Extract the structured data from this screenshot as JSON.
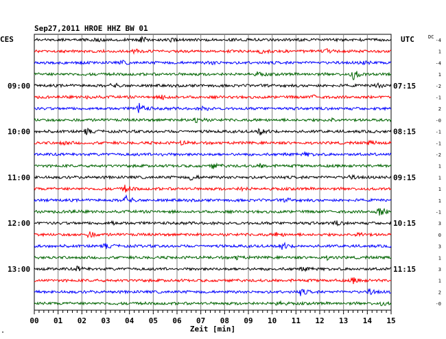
{
  "header": {
    "title": "Sep27,2011  HROE HHZ BW 01",
    "left_tz": "CES",
    "right_tz": "UTC",
    "dc_label": "DC"
  },
  "footer": {
    "xlabel": "Zeit [min]",
    "corner_mark": "\""
  },
  "chart_data": {
    "type": "line",
    "title": "Sep27,2011  HROE HHZ BW 01",
    "xlabel": "Zeit [min]",
    "xlim": [
      0,
      15
    ],
    "x_ticks": [
      "00",
      "01",
      "02",
      "03",
      "04",
      "05",
      "06",
      "07",
      "08",
      "09",
      "10",
      "11",
      "12",
      "13",
      "14",
      "15"
    ],
    "grid": true,
    "trace_colors": [
      "#000000",
      "#ff0000",
      "#0000ff",
      "#006400"
    ],
    "left_hour_labels": [
      {
        "row": 4,
        "text": "09:00"
      },
      {
        "row": 8,
        "text": "10:00"
      },
      {
        "row": 12,
        "text": "11:00"
      },
      {
        "row": 16,
        "text": "12:00"
      },
      {
        "row": 20,
        "text": "13:00"
      }
    ],
    "right_hour_labels": [
      {
        "row": 4,
        "text": "07:15"
      },
      {
        "row": 8,
        "text": "08:15"
      },
      {
        "row": 12,
        "text": "09:15"
      },
      {
        "row": 16,
        "text": "10:15"
      },
      {
        "row": 20,
        "text": "11:15"
      }
    ],
    "dc_offsets": [
      "-4",
      "1",
      "-4",
      "1",
      "-2",
      "-1",
      "2",
      "-0",
      "-1",
      "-1",
      "-2",
      "1",
      "1",
      "1",
      "1",
      "-1",
      "3",
      "0",
      "3",
      "1",
      "3",
      "1",
      "2",
      "-0"
    ],
    "rows": [
      {
        "events": [
          {
            "t": 2.5,
            "a": 0.5
          },
          {
            "t": 4.5,
            "a": 0.55
          },
          {
            "t": 5.8,
            "a": 0.35
          }
        ]
      },
      {
        "events": [
          {
            "t": 4.2,
            "a": 0.35
          },
          {
            "t": 9.5,
            "a": 0.3
          },
          {
            "t": 12.3,
            "a": 0.3
          }
        ]
      },
      {
        "events": [
          {
            "t": 3.7,
            "a": 0.3
          },
          {
            "t": 7.4,
            "a": 0.3
          },
          {
            "t": 13.8,
            "a": 0.3
          }
        ]
      },
      {
        "events": [
          {
            "t": 9.4,
            "a": 0.4
          },
          {
            "t": 13.4,
            "a": 1.0
          }
        ]
      },
      {
        "events": [
          {
            "t": 3.3,
            "a": 0.4
          },
          {
            "t": 14.3,
            "a": 0.6
          }
        ]
      },
      {
        "events": [
          {
            "t": 2.3,
            "a": 0.35
          },
          {
            "t": 5.4,
            "a": 0.55
          },
          {
            "t": 11.7,
            "a": 0.35
          }
        ]
      },
      {
        "events": [
          {
            "t": 4.4,
            "a": 1.1
          },
          {
            "t": 7.1,
            "a": 0.3
          }
        ]
      },
      {
        "events": [
          {
            "t": 6.8,
            "a": 0.6
          },
          {
            "t": 12.5,
            "a": 0.3
          }
        ]
      },
      {
        "events": [
          {
            "t": 2.2,
            "a": 0.5
          },
          {
            "t": 9.5,
            "a": 0.7
          }
        ]
      },
      {
        "events": [
          {
            "t": 1.2,
            "a": 0.3
          },
          {
            "t": 6.2,
            "a": 0.3
          },
          {
            "t": 14.1,
            "a": 0.3
          }
        ]
      },
      {
        "events": [
          {
            "t": 5.2,
            "a": 0.3
          },
          {
            "t": 11.4,
            "a": 0.3
          }
        ]
      },
      {
        "events": [
          {
            "t": 7.5,
            "a": 0.45
          },
          {
            "t": 9.5,
            "a": 0.35
          }
        ]
      },
      {
        "events": [
          {
            "t": 6.6,
            "a": 0.5
          },
          {
            "t": 13.3,
            "a": 0.3
          }
        ]
      },
      {
        "events": [
          {
            "t": 3.8,
            "a": 0.7
          },
          {
            "t": 8.7,
            "a": 0.3
          }
        ]
      },
      {
        "events": [
          {
            "t": 3.8,
            "a": 1.0
          },
          {
            "t": 10.6,
            "a": 0.3
          }
        ]
      },
      {
        "events": [
          {
            "t": 1.5,
            "a": 0.3
          },
          {
            "t": 14.5,
            "a": 1.0
          }
        ]
      },
      {
        "events": [
          {
            "t": 3.2,
            "a": 0.3
          },
          {
            "t": 12.7,
            "a": 0.35
          }
        ]
      },
      {
        "events": [
          {
            "t": 2.3,
            "a": 0.55
          },
          {
            "t": 10.2,
            "a": 0.45
          },
          {
            "t": 13.6,
            "a": 0.5
          }
        ]
      },
      {
        "events": [
          {
            "t": 3.0,
            "a": 0.45
          },
          {
            "t": 10.4,
            "a": 0.8
          }
        ]
      },
      {
        "events": [
          {
            "t": 8.5,
            "a": 0.3
          },
          {
            "t": 12.3,
            "a": 0.3
          }
        ]
      },
      {
        "events": [
          {
            "t": 1.8,
            "a": 0.45
          },
          {
            "t": 11.3,
            "a": 0.3
          }
        ]
      },
      {
        "events": [
          {
            "t": 13.4,
            "a": 0.55
          }
        ]
      },
      {
        "events": [
          {
            "t": 11.2,
            "a": 0.6
          },
          {
            "t": 14.1,
            "a": 0.45
          }
        ]
      },
      {
        "events": [
          {
            "t": 10.2,
            "a": 0.4
          },
          {
            "t": 14.6,
            "a": 0.3
          }
        ]
      }
    ]
  }
}
